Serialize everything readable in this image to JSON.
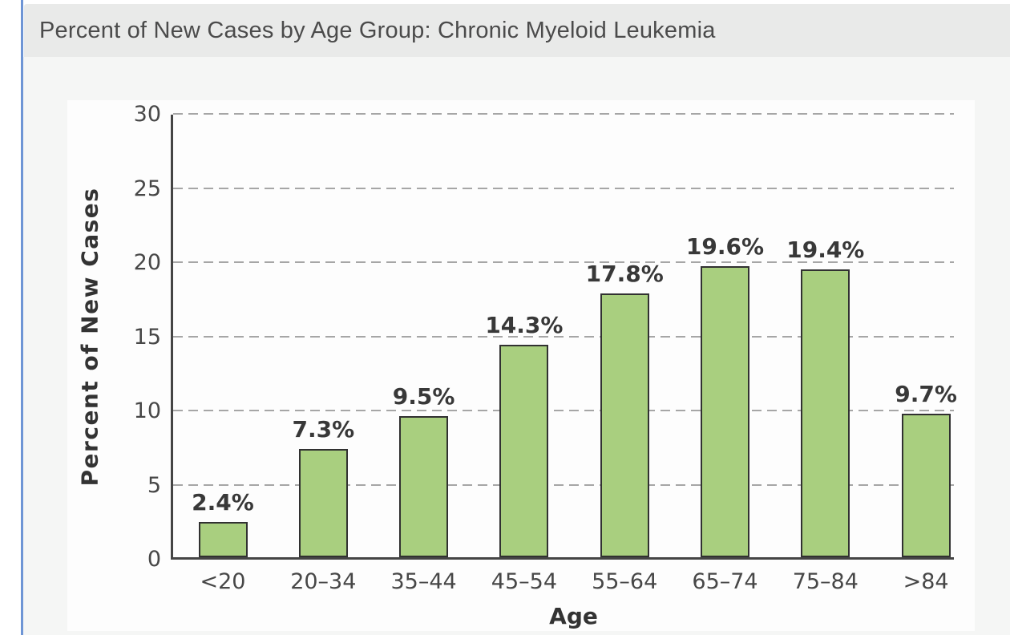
{
  "header": {
    "title": "Percent of New Cases by Age Group: Chronic Myeloid Leukemia"
  },
  "chart_data": {
    "type": "bar",
    "title": "Percent of New Cases by Age Group: Chronic Myeloid Leukemia",
    "categories": [
      "<20",
      "20–34",
      "35–44",
      "45–54",
      "55–64",
      "65–74",
      "75–84",
      ">84"
    ],
    "values": [
      2.4,
      7.3,
      9.5,
      14.3,
      17.8,
      19.6,
      19.4,
      9.7
    ],
    "labels": [
      "2.4%",
      "7.3%",
      "9.5%",
      "14.3%",
      "17.8%",
      "19.6%",
      "19.4%",
      "9.7%"
    ],
    "xlabel": "Age",
    "ylabel": "Percent of New Cases",
    "ylim": [
      0,
      30
    ],
    "yticks": [
      0,
      5,
      10,
      15,
      20,
      25,
      30
    ],
    "grid": "horizontal-dashed",
    "legend": "none",
    "bar_color": "#a9cf7f",
    "bar_border_color": "#313131",
    "grid_color": "#a6a6a6",
    "axis_color": "#454545"
  },
  "theme": {
    "accent_blue": "#6e95d5",
    "header_bg": "#e9eae9",
    "page_bg": "#f5f6f5",
    "card_bg": "#fdfdfd"
  }
}
